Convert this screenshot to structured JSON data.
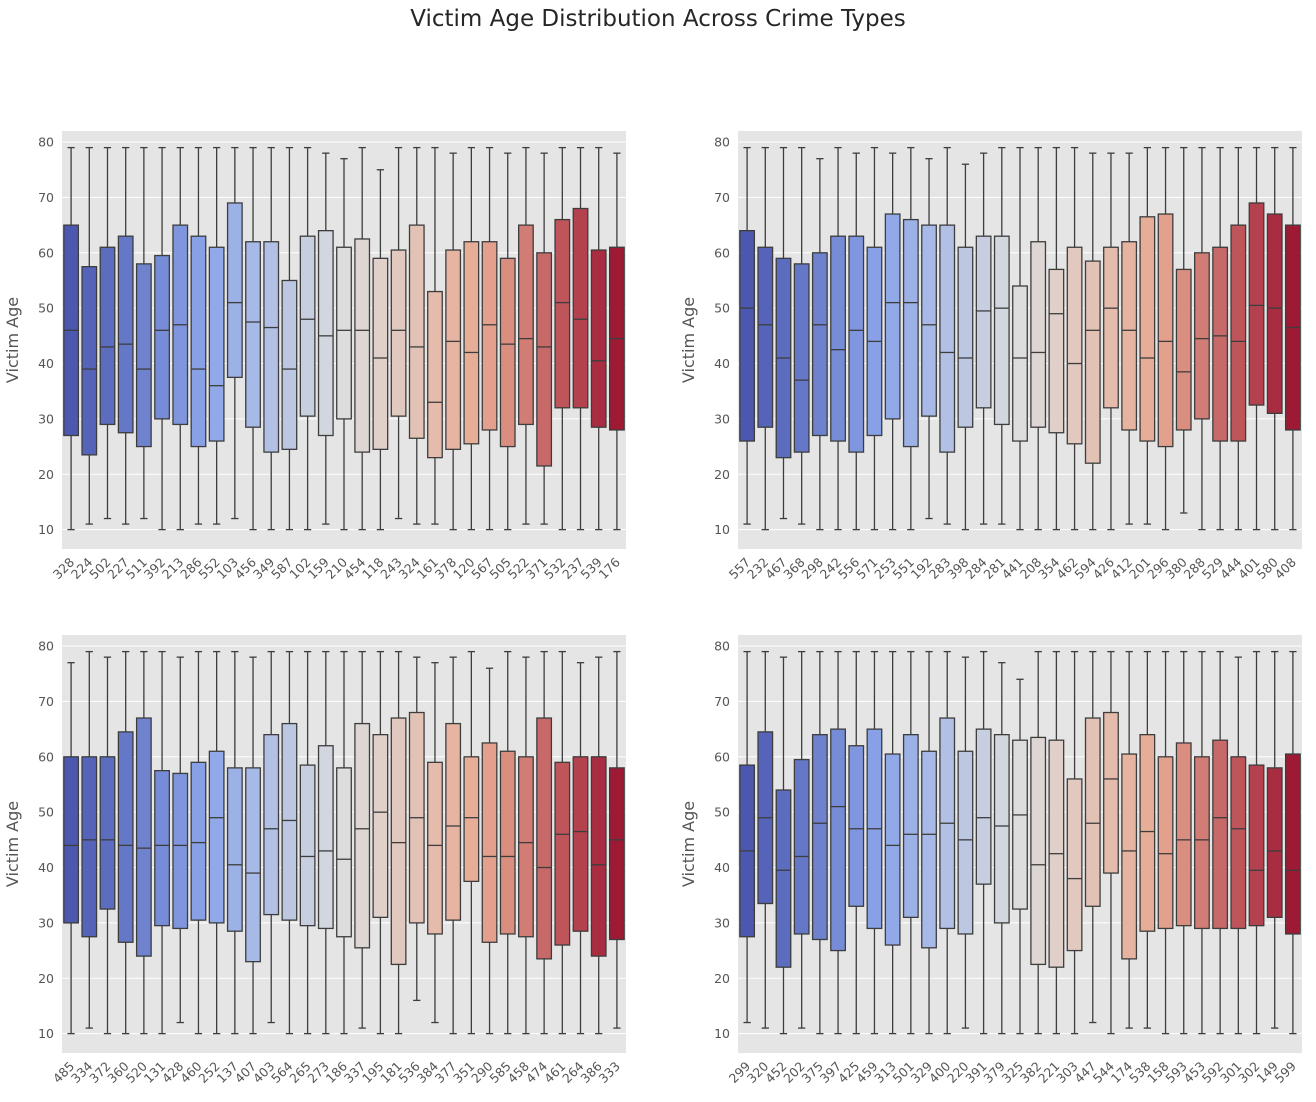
{
  "title": "Victim Age Distribution Across Crime Types",
  "colors": {
    "background": "#e5e5e5",
    "grid": "#ffffff",
    "outline": "#3d3d3d",
    "palette": "coolwarm"
  },
  "chart_data": [
    {
      "type": "box",
      "ylabel": "Victim Age",
      "ylim": [
        6.5,
        82
      ],
      "yticks": [
        10,
        20,
        30,
        40,
        50,
        60,
        70,
        80
      ],
      "grid": true,
      "categories": [
        "328",
        "224",
        "502",
        "227",
        "511",
        "392",
        "213",
        "286",
        "552",
        "103",
        "456",
        "349",
        "587",
        "102",
        "159",
        "210",
        "454",
        "118",
        "243",
        "324",
        "161",
        "378",
        "120",
        "567",
        "505",
        "522",
        "371",
        "532",
        "237",
        "539",
        "176"
      ],
      "boxes": [
        {
          "whislo": 10,
          "q1": 27,
          "med": 46,
          "q3": 65,
          "whishi": 79
        },
        {
          "whislo": 11,
          "q1": 23.5,
          "med": 39,
          "q3": 57.5,
          "whishi": 79
        },
        {
          "whislo": 12,
          "q1": 29,
          "med": 43,
          "q3": 61,
          "whishi": 79
        },
        {
          "whislo": 11,
          "q1": 27.5,
          "med": 43.5,
          "q3": 63,
          "whishi": 79
        },
        {
          "whislo": 12,
          "q1": 25,
          "med": 39,
          "q3": 58,
          "whishi": 79
        },
        {
          "whislo": 10,
          "q1": 30,
          "med": 46,
          "q3": 59.5,
          "whishi": 79
        },
        {
          "whislo": 10,
          "q1": 29,
          "med": 47,
          "q3": 65,
          "whishi": 79
        },
        {
          "whislo": 11,
          "q1": 25,
          "med": 39,
          "q3": 63,
          "whishi": 79
        },
        {
          "whislo": 11,
          "q1": 26,
          "med": 36,
          "q3": 61,
          "whishi": 79
        },
        {
          "whislo": 12,
          "q1": 37.5,
          "med": 51,
          "q3": 69,
          "whishi": 79
        },
        {
          "whislo": 10,
          "q1": 28.5,
          "med": 47.5,
          "q3": 62,
          "whishi": 79
        },
        {
          "whislo": 10,
          "q1": 24,
          "med": 46.5,
          "q3": 62,
          "whishi": 79
        },
        {
          "whislo": 10,
          "q1": 24.5,
          "med": 39,
          "q3": 55,
          "whishi": 79
        },
        {
          "whislo": 10,
          "q1": 30.5,
          "med": 48,
          "q3": 63,
          "whishi": 79
        },
        {
          "whislo": 11,
          "q1": 27,
          "med": 45,
          "q3": 64,
          "whishi": 78
        },
        {
          "whislo": 10,
          "q1": 30,
          "med": 46,
          "q3": 61,
          "whishi": 77
        },
        {
          "whislo": 10,
          "q1": 24,
          "med": 46,
          "q3": 62.5,
          "whishi": 79
        },
        {
          "whislo": 10,
          "q1": 24.5,
          "med": 41,
          "q3": 59,
          "whishi": 75
        },
        {
          "whislo": 12,
          "q1": 30.5,
          "med": 46,
          "q3": 60.5,
          "whishi": 79
        },
        {
          "whislo": 11,
          "q1": 26.5,
          "med": 43,
          "q3": 65,
          "whishi": 79
        },
        {
          "whislo": 11,
          "q1": 23,
          "med": 33,
          "q3": 53,
          "whishi": 79
        },
        {
          "whislo": 10,
          "q1": 24.5,
          "med": 44,
          "q3": 60.5,
          "whishi": 78
        },
        {
          "whislo": 10,
          "q1": 25.5,
          "med": 42,
          "q3": 62,
          "whishi": 79
        },
        {
          "whislo": 10,
          "q1": 28,
          "med": 47,
          "q3": 62,
          "whishi": 79
        },
        {
          "whislo": 10,
          "q1": 25,
          "med": 43.5,
          "q3": 59,
          "whishi": 78
        },
        {
          "whislo": 11,
          "q1": 29,
          "med": 44.5,
          "q3": 65,
          "whishi": 79
        },
        {
          "whislo": 11,
          "q1": 21.5,
          "med": 43,
          "q3": 60,
          "whishi": 78
        },
        {
          "whislo": 10,
          "q1": 32,
          "med": 51,
          "q3": 66,
          "whishi": 79
        },
        {
          "whislo": 10,
          "q1": 32,
          "med": 48,
          "q3": 68,
          "whishi": 79
        },
        {
          "whislo": 10,
          "q1": 28.5,
          "med": 40.5,
          "q3": 60.5,
          "whishi": 79
        },
        {
          "whislo": 10,
          "q1": 28,
          "med": 44.5,
          "q3": 61,
          "whishi": 78
        }
      ]
    },
    {
      "type": "box",
      "ylabel": "Victim Age",
      "ylim": [
        6.5,
        82
      ],
      "yticks": [
        10,
        20,
        30,
        40,
        50,
        60,
        70,
        80
      ],
      "grid": true,
      "categories": [
        "557",
        "232",
        "467",
        "368",
        "298",
        "242",
        "556",
        "571",
        "253",
        "551",
        "192",
        "283",
        "398",
        "284",
        "281",
        "441",
        "208",
        "354",
        "462",
        "594",
        "426",
        "412",
        "201",
        "296",
        "380",
        "288",
        "529",
        "444",
        "401",
        "580",
        "408"
      ],
      "boxes": [
        {
          "whislo": 11,
          "q1": 26,
          "med": 50,
          "q3": 64,
          "whishi": 79
        },
        {
          "whislo": 10,
          "q1": 28.5,
          "med": 47,
          "q3": 61,
          "whishi": 79
        },
        {
          "whislo": 12,
          "q1": 23,
          "med": 41,
          "q3": 59,
          "whishi": 79
        },
        {
          "whislo": 11,
          "q1": 24,
          "med": 37,
          "q3": 58,
          "whishi": 79
        },
        {
          "whislo": 10,
          "q1": 27,
          "med": 47,
          "q3": 60,
          "whishi": 77
        },
        {
          "whislo": 10,
          "q1": 26,
          "med": 42.5,
          "q3": 63,
          "whishi": 79
        },
        {
          "whislo": 10,
          "q1": 24,
          "med": 46,
          "q3": 63,
          "whishi": 78
        },
        {
          "whislo": 10,
          "q1": 27,
          "med": 44,
          "q3": 61,
          "whishi": 79
        },
        {
          "whislo": 10,
          "q1": 30,
          "med": 51,
          "q3": 67,
          "whishi": 78
        },
        {
          "whislo": 10,
          "q1": 25,
          "med": 51,
          "q3": 66,
          "whishi": 79
        },
        {
          "whislo": 12,
          "q1": 30.5,
          "med": 47,
          "q3": 65,
          "whishi": 77
        },
        {
          "whislo": 11,
          "q1": 24,
          "med": 42,
          "q3": 65,
          "whishi": 79
        },
        {
          "whislo": 10,
          "q1": 28.5,
          "med": 41,
          "q3": 61,
          "whishi": 76
        },
        {
          "whislo": 11,
          "q1": 32,
          "med": 49.5,
          "q3": 63,
          "whishi": 78
        },
        {
          "whislo": 11,
          "q1": 29,
          "med": 50,
          "q3": 63,
          "whishi": 79
        },
        {
          "whislo": 10,
          "q1": 26,
          "med": 41,
          "q3": 54,
          "whishi": 79
        },
        {
          "whislo": 10,
          "q1": 28.5,
          "med": 42,
          "q3": 62,
          "whishi": 79
        },
        {
          "whislo": 10,
          "q1": 27.5,
          "med": 49,
          "q3": 57,
          "whishi": 79
        },
        {
          "whislo": 10,
          "q1": 25.5,
          "med": 40,
          "q3": 61,
          "whishi": 79
        },
        {
          "whislo": 10,
          "q1": 22,
          "med": 46,
          "q3": 58.5,
          "whishi": 78
        },
        {
          "whislo": 10,
          "q1": 32,
          "med": 50,
          "q3": 61,
          "whishi": 78
        },
        {
          "whislo": 11,
          "q1": 28,
          "med": 46,
          "q3": 62,
          "whishi": 78
        },
        {
          "whislo": 11,
          "q1": 26,
          "med": 41,
          "q3": 66.5,
          "whishi": 79
        },
        {
          "whislo": 10,
          "q1": 25,
          "med": 44,
          "q3": 67,
          "whishi": 79
        },
        {
          "whislo": 13,
          "q1": 28,
          "med": 38.5,
          "q3": 57,
          "whishi": 79
        },
        {
          "whislo": 10,
          "q1": 30,
          "med": 44.5,
          "q3": 60,
          "whishi": 79
        },
        {
          "whislo": 10,
          "q1": 26,
          "med": 45,
          "q3": 61,
          "whishi": 79
        },
        {
          "whislo": 10,
          "q1": 26,
          "med": 44,
          "q3": 65,
          "whishi": 79
        },
        {
          "whislo": 10,
          "q1": 32.5,
          "med": 50.5,
          "q3": 69,
          "whishi": 79
        },
        {
          "whislo": 10,
          "q1": 31,
          "med": 50,
          "q3": 67,
          "whishi": 79
        },
        {
          "whislo": 10,
          "q1": 28,
          "med": 46.5,
          "q3": 65,
          "whishi": 79
        }
      ]
    },
    {
      "type": "box",
      "ylabel": "Victim Age",
      "ylim": [
        6.5,
        82
      ],
      "yticks": [
        10,
        20,
        30,
        40,
        50,
        60,
        70,
        80
      ],
      "grid": true,
      "categories": [
        "485",
        "334",
        "372",
        "360",
        "520",
        "131",
        "428",
        "460",
        "252",
        "137",
        "407",
        "403",
        "564",
        "265",
        "273",
        "186",
        "337",
        "195",
        "181",
        "536",
        "384",
        "377",
        "351",
        "290",
        "585",
        "458",
        "474",
        "461",
        "264",
        "386",
        "333"
      ],
      "boxes": [
        {
          "whislo": 10,
          "q1": 30,
          "med": 44,
          "q3": 60,
          "whishi": 77
        },
        {
          "whislo": 11,
          "q1": 27.5,
          "med": 45,
          "q3": 60,
          "whishi": 79
        },
        {
          "whislo": 10,
          "q1": 32.5,
          "med": 45,
          "q3": 60,
          "whishi": 78
        },
        {
          "whislo": 10,
          "q1": 26.5,
          "med": 44,
          "q3": 64.5,
          "whishi": 79
        },
        {
          "whislo": 10,
          "q1": 24,
          "med": 43.5,
          "q3": 67,
          "whishi": 79
        },
        {
          "whislo": 10,
          "q1": 29.5,
          "med": 44,
          "q3": 57.5,
          "whishi": 79
        },
        {
          "whislo": 12,
          "q1": 29,
          "med": 44,
          "q3": 57,
          "whishi": 78
        },
        {
          "whislo": 10,
          "q1": 30.5,
          "med": 44.5,
          "q3": 59,
          "whishi": 79
        },
        {
          "whislo": 10,
          "q1": 30,
          "med": 49,
          "q3": 61,
          "whishi": 79
        },
        {
          "whislo": 10,
          "q1": 28.5,
          "med": 40.5,
          "q3": 58,
          "whishi": 79
        },
        {
          "whislo": 10,
          "q1": 23,
          "med": 39,
          "q3": 58,
          "whishi": 78
        },
        {
          "whislo": 12,
          "q1": 31.5,
          "med": 47,
          "q3": 64,
          "whishi": 79
        },
        {
          "whislo": 10,
          "q1": 30.5,
          "med": 48.5,
          "q3": 66,
          "whishi": 79
        },
        {
          "whislo": 10,
          "q1": 29.5,
          "med": 42,
          "q3": 58.5,
          "whishi": 79
        },
        {
          "whislo": 10,
          "q1": 29,
          "med": 43,
          "q3": 62,
          "whishi": 79
        },
        {
          "whislo": 10,
          "q1": 27.5,
          "med": 41.5,
          "q3": 58,
          "whishi": 79
        },
        {
          "whislo": 11,
          "q1": 25.5,
          "med": 47,
          "q3": 66,
          "whishi": 79
        },
        {
          "whislo": 10,
          "q1": 31,
          "med": 50,
          "q3": 64,
          "whishi": 79
        },
        {
          "whislo": 10,
          "q1": 22.5,
          "med": 44.5,
          "q3": 67,
          "whishi": 79
        },
        {
          "whislo": 16,
          "q1": 30,
          "med": 49,
          "q3": 68,
          "whishi": 78
        },
        {
          "whislo": 12,
          "q1": 28,
          "med": 44,
          "q3": 59,
          "whishi": 77
        },
        {
          "whislo": 10,
          "q1": 30.5,
          "med": 47.5,
          "q3": 66,
          "whishi": 78
        },
        {
          "whislo": 10,
          "q1": 37.5,
          "med": 49,
          "q3": 60,
          "whishi": 79
        },
        {
          "whislo": 10,
          "q1": 26.5,
          "med": 42,
          "q3": 62.5,
          "whishi": 76
        },
        {
          "whislo": 10,
          "q1": 28,
          "med": 42,
          "q3": 61,
          "whishi": 79
        },
        {
          "whislo": 10,
          "q1": 27.5,
          "med": 44.5,
          "q3": 60,
          "whishi": 78
        },
        {
          "whislo": 10,
          "q1": 23.5,
          "med": 40,
          "q3": 67,
          "whishi": 79
        },
        {
          "whislo": 10,
          "q1": 26,
          "med": 46,
          "q3": 59,
          "whishi": 79
        },
        {
          "whislo": 10,
          "q1": 28.5,
          "med": 46.5,
          "q3": 60,
          "whishi": 77
        },
        {
          "whislo": 10,
          "q1": 24,
          "med": 40.5,
          "q3": 60,
          "whishi": 78
        },
        {
          "whislo": 11,
          "q1": 27,
          "med": 45,
          "q3": 58,
          "whishi": 79
        }
      ]
    },
    {
      "type": "box",
      "ylabel": "Victim Age",
      "ylim": [
        6.5,
        82
      ],
      "yticks": [
        10,
        20,
        30,
        40,
        50,
        60,
        70,
        80
      ],
      "grid": true,
      "categories": [
        "299",
        "320",
        "452",
        "202",
        "375",
        "397",
        "425",
        "459",
        "313",
        "501",
        "329",
        "400",
        "220",
        "391",
        "379",
        "325",
        "382",
        "221",
        "303",
        "447",
        "544",
        "174",
        "538",
        "158",
        "593",
        "453",
        "592",
        "301",
        "302",
        "149",
        "599"
      ],
      "boxes": [
        {
          "whislo": 12,
          "q1": 27.5,
          "med": 43,
          "q3": 58.5,
          "whishi": 79
        },
        {
          "whislo": 11,
          "q1": 33.5,
          "med": 49,
          "q3": 64.5,
          "whishi": 79
        },
        {
          "whislo": 10,
          "q1": 22,
          "med": 39.5,
          "q3": 54,
          "whishi": 78
        },
        {
          "whislo": 11,
          "q1": 28,
          "med": 42,
          "q3": 59.5,
          "whishi": 79
        },
        {
          "whislo": 10,
          "q1": 27,
          "med": 48,
          "q3": 64,
          "whishi": 79
        },
        {
          "whislo": 10,
          "q1": 25,
          "med": 51,
          "q3": 65,
          "whishi": 79
        },
        {
          "whislo": 10,
          "q1": 33,
          "med": 47,
          "q3": 62,
          "whishi": 79
        },
        {
          "whislo": 10,
          "q1": 29,
          "med": 47,
          "q3": 65,
          "whishi": 79
        },
        {
          "whislo": 10,
          "q1": 26,
          "med": 44,
          "q3": 60.5,
          "whishi": 79
        },
        {
          "whislo": 10,
          "q1": 31,
          "med": 46,
          "q3": 64,
          "whishi": 79
        },
        {
          "whislo": 10,
          "q1": 25.5,
          "med": 46,
          "q3": 61,
          "whishi": 79
        },
        {
          "whislo": 10,
          "q1": 29,
          "med": 48,
          "q3": 67,
          "whishi": 79
        },
        {
          "whislo": 11,
          "q1": 28,
          "med": 45,
          "q3": 61,
          "whishi": 78
        },
        {
          "whislo": 10,
          "q1": 37,
          "med": 49,
          "q3": 65,
          "whishi": 79
        },
        {
          "whislo": 10,
          "q1": 30,
          "med": 47.5,
          "q3": 64,
          "whishi": 77
        },
        {
          "whislo": 10,
          "q1": 32.5,
          "med": 49.5,
          "q3": 63,
          "whishi": 74
        },
        {
          "whislo": 10,
          "q1": 22.5,
          "med": 40.5,
          "q3": 63.5,
          "whishi": 79
        },
        {
          "whislo": 10,
          "q1": 22,
          "med": 42.5,
          "q3": 63,
          "whishi": 79
        },
        {
          "whislo": 10,
          "q1": 25,
          "med": 38,
          "q3": 56,
          "whishi": 79
        },
        {
          "whislo": 12,
          "q1": 33,
          "med": 48,
          "q3": 67,
          "whishi": 79
        },
        {
          "whislo": 10,
          "q1": 39,
          "med": 56,
          "q3": 68,
          "whishi": 79
        },
        {
          "whislo": 11,
          "q1": 23.5,
          "med": 43,
          "q3": 60.5,
          "whishi": 79
        },
        {
          "whislo": 11,
          "q1": 28.5,
          "med": 46.5,
          "q3": 64,
          "whishi": 79
        },
        {
          "whislo": 10,
          "q1": 29,
          "med": 42.5,
          "q3": 60,
          "whishi": 79
        },
        {
          "whislo": 10,
          "q1": 29.5,
          "med": 45,
          "q3": 62.5,
          "whishi": 79
        },
        {
          "whislo": 10,
          "q1": 29,
          "med": 45,
          "q3": 60,
          "whishi": 79
        },
        {
          "whislo": 10,
          "q1": 29,
          "med": 49,
          "q3": 63,
          "whishi": 79
        },
        {
          "whislo": 10,
          "q1": 29,
          "med": 47,
          "q3": 60,
          "whishi": 78
        },
        {
          "whislo": 10,
          "q1": 29.5,
          "med": 39.5,
          "q3": 58.5,
          "whishi": 79
        },
        {
          "whislo": 11,
          "q1": 31,
          "med": 43,
          "q3": 58,
          "whishi": 79
        },
        {
          "whislo": 10,
          "q1": 28,
          "med": 39.5,
          "q3": 60.5,
          "whishi": 79
        }
      ]
    }
  ]
}
